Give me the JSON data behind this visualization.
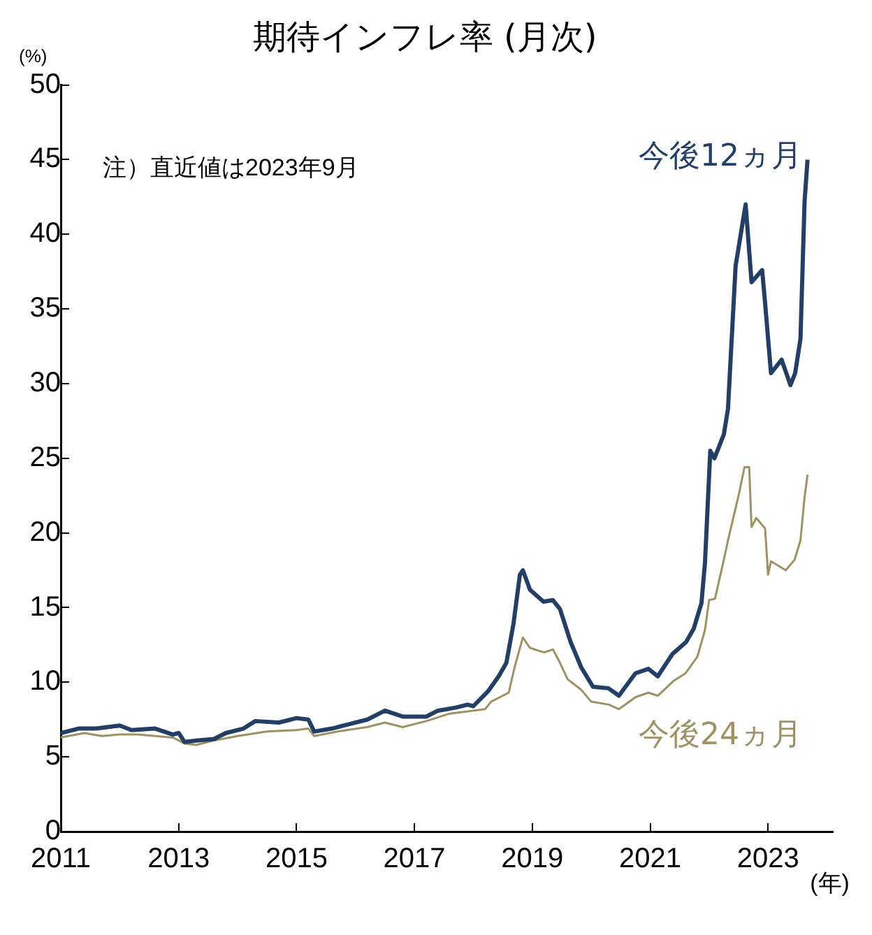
{
  "chart_data": {
    "type": "line",
    "title": "期待インフレ率 (月次)",
    "ylabel": "(%)",
    "xlabel": "(年)",
    "annotations": [
      "注）直近値は2023年9月"
    ],
    "xlim": [
      2011,
      2024.1
    ],
    "xticks": [
      2011,
      2013,
      2015,
      2017,
      2019,
      2021,
      2023
    ],
    "ylim": [
      0,
      50
    ],
    "yticks": [
      0,
      5,
      10,
      15,
      20,
      25,
      30,
      35,
      40,
      45,
      50
    ],
    "grid": false,
    "legend": false,
    "marker": "none",
    "line_style": "solid",
    "series": [
      {
        "name": "今後12ヵ月",
        "color": "#243f66",
        "x": [
          2011.0,
          2011.3,
          2011.6,
          2012.0,
          2012.2,
          2012.6,
          2012.9,
          2013.0,
          2013.1,
          2013.3,
          2013.6,
          2013.8,
          2014.1,
          2014.3,
          2014.7,
          2015.0,
          2015.2,
          2015.3,
          2015.6,
          2015.9,
          2016.2,
          2016.5,
          2016.8,
          2017.2,
          2017.4,
          2017.7,
          2017.9,
          2018.0,
          2018.25,
          2018.43,
          2018.56,
          2018.68,
          2018.79,
          2018.84,
          2018.96,
          2019.19,
          2019.35,
          2019.47,
          2019.65,
          2019.83,
          2020.03,
          2020.29,
          2020.47,
          2020.75,
          2020.97,
          2021.13,
          2021.38,
          2021.61,
          2021.74,
          2021.87,
          2021.93,
          2022.02,
          2022.09,
          2022.25,
          2022.32,
          2022.45,
          2022.62,
          2022.72,
          2022.9,
          2022.95,
          2023.05,
          2023.23,
          2023.38,
          2023.46,
          2023.55,
          2023.62,
          2023.67
        ],
        "values": [
          6.6,
          6.9,
          6.9,
          7.1,
          6.8,
          6.9,
          6.5,
          6.6,
          6.0,
          6.1,
          6.2,
          6.6,
          6.9,
          7.4,
          7.3,
          7.6,
          7.5,
          6.7,
          6.9,
          7.2,
          7.5,
          8.1,
          7.7,
          7.7,
          8.1,
          8.3,
          8.5,
          8.4,
          9.4,
          10.4,
          11.3,
          13.9,
          17.2,
          17.5,
          16.2,
          15.4,
          15.5,
          14.9,
          12.7,
          11.0,
          9.7,
          9.6,
          9.1,
          10.6,
          10.9,
          10.4,
          11.9,
          12.7,
          13.6,
          15.3,
          18.0,
          25.5,
          25.0,
          26.6,
          28.3,
          37.9,
          42.0,
          36.8,
          37.6,
          35.4,
          30.7,
          31.6,
          29.9,
          30.7,
          33.0,
          42.2,
          45.0
        ]
      },
      {
        "name": "今後24ヵ月",
        "color": "#9e9265",
        "x": [
          2011.0,
          2011.4,
          2011.7,
          2012.0,
          2012.3,
          2012.9,
          2013.1,
          2013.3,
          2013.6,
          2014.0,
          2014.5,
          2015.0,
          2015.2,
          2015.3,
          2015.7,
          2016.2,
          2016.5,
          2016.8,
          2017.2,
          2017.6,
          2018.0,
          2018.2,
          2018.3,
          2018.6,
          2018.7,
          2018.84,
          2018.96,
          2019.2,
          2019.35,
          2019.47,
          2019.6,
          2019.83,
          2020.0,
          2020.3,
          2020.47,
          2020.75,
          2020.97,
          2021.13,
          2021.4,
          2021.6,
          2021.8,
          2021.93,
          2022.0,
          2022.1,
          2022.25,
          2022.32,
          2022.5,
          2022.6,
          2022.68,
          2022.72,
          2022.8,
          2022.95,
          2023.0,
          2023.05,
          2023.3,
          2023.45,
          2023.55,
          2023.62,
          2023.67
        ],
        "values": [
          6.3,
          6.6,
          6.4,
          6.5,
          6.5,
          6.3,
          5.9,
          5.8,
          6.1,
          6.4,
          6.7,
          6.8,
          6.9,
          6.4,
          6.7,
          7.0,
          7.3,
          7.0,
          7.4,
          7.9,
          8.1,
          8.2,
          8.7,
          9.3,
          11.0,
          13.0,
          12.3,
          12.0,
          12.2,
          11.3,
          10.2,
          9.5,
          8.7,
          8.5,
          8.2,
          9.0,
          9.3,
          9.1,
          10.1,
          10.6,
          11.7,
          13.5,
          15.5,
          15.6,
          18.2,
          19.5,
          22.5,
          24.4,
          24.4,
          20.4,
          21.0,
          20.3,
          17.2,
          18.1,
          17.5,
          18.2,
          19.5,
          22.4,
          23.9
        ]
      }
    ]
  }
}
